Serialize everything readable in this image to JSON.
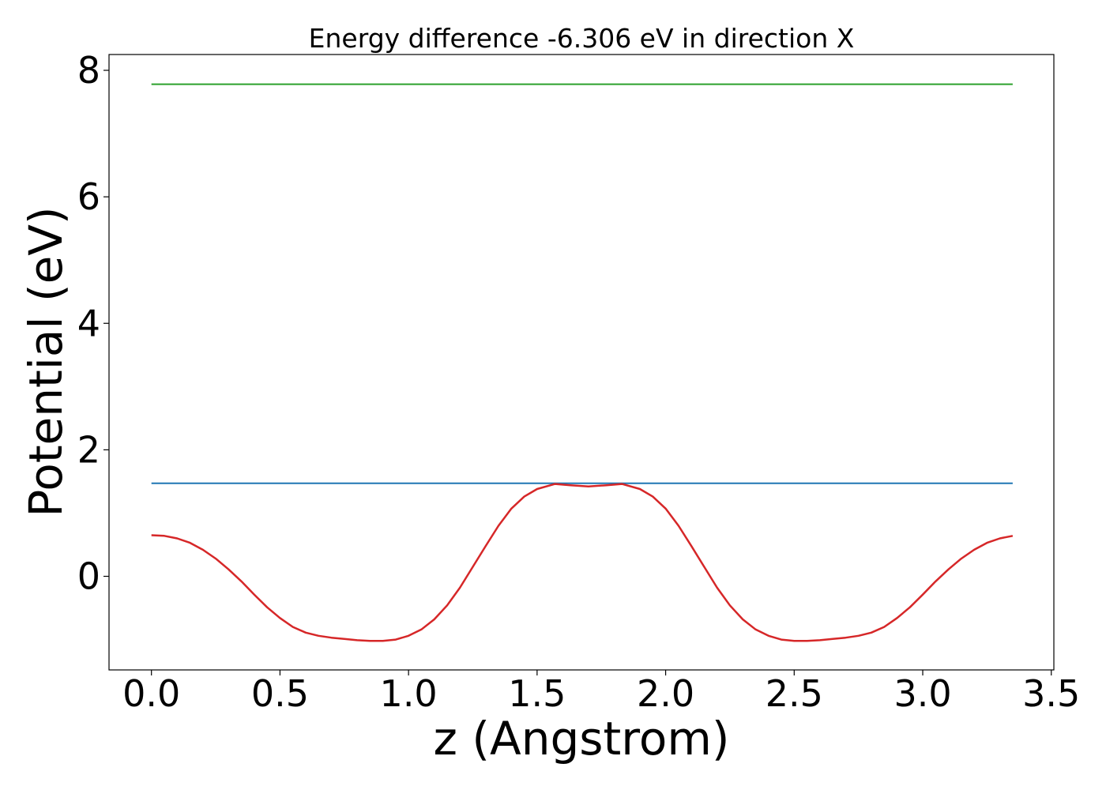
{
  "chart_data": {
    "type": "line",
    "title": "Energy difference -6.306 eV in direction X",
    "xlabel": "z (Angstrom)",
    "ylabel": "Potential (eV)",
    "xlim": [
      -0.165,
      3.51
    ],
    "ylim": [
      -1.48,
      8.25
    ],
    "xticks": [
      0.0,
      0.5,
      1.0,
      1.5,
      2.0,
      2.5,
      3.0,
      3.5
    ],
    "xtick_labels": [
      "0.0",
      "0.5",
      "1.0",
      "1.5",
      "2.0",
      "2.5",
      "3.0",
      "3.5"
    ],
    "yticks": [
      0,
      2,
      4,
      6,
      8
    ],
    "ytick_labels": [
      "0",
      "2",
      "4",
      "6",
      "8"
    ],
    "grid": false,
    "series": [
      {
        "color": "#2ca02c",
        "x": [
          0.0,
          3.35
        ],
        "y": [
          7.78,
          7.78
        ]
      },
      {
        "color": "#1f77b4",
        "x": [
          0.0,
          3.35
        ],
        "y": [
          1.47,
          1.47
        ]
      },
      {
        "color": "#d62728",
        "x": [
          0.0,
          0.05,
          0.1,
          0.15,
          0.2,
          0.25,
          0.3,
          0.35,
          0.4,
          0.45,
          0.5,
          0.55,
          0.6,
          0.65,
          0.7,
          0.75,
          0.8,
          0.85,
          0.9,
          0.95,
          1.0,
          1.05,
          1.1,
          1.15,
          1.2,
          1.25,
          1.3,
          1.35,
          1.4,
          1.45,
          1.5,
          1.57,
          1.63,
          1.7,
          1.77,
          1.83,
          1.9,
          1.95,
          2.0,
          2.05,
          2.1,
          2.15,
          2.2,
          2.25,
          2.3,
          2.35,
          2.4,
          2.45,
          2.5,
          2.55,
          2.6,
          2.65,
          2.7,
          2.75,
          2.8,
          2.85,
          2.9,
          2.95,
          3.0,
          3.05,
          3.1,
          3.15,
          3.2,
          3.25,
          3.3,
          3.35
        ],
        "y": [
          0.65,
          0.64,
          0.6,
          0.53,
          0.42,
          0.28,
          0.11,
          -0.08,
          -0.29,
          -0.49,
          -0.66,
          -0.8,
          -0.89,
          -0.94,
          -0.97,
          -0.99,
          -1.01,
          -1.02,
          -1.02,
          -1.0,
          -0.94,
          -0.84,
          -0.68,
          -0.46,
          -0.18,
          0.15,
          0.48,
          0.8,
          1.07,
          1.26,
          1.38,
          1.46,
          1.44,
          1.42,
          1.44,
          1.46,
          1.38,
          1.26,
          1.07,
          0.8,
          0.48,
          0.15,
          -0.18,
          -0.46,
          -0.68,
          -0.84,
          -0.94,
          -1.0,
          -1.02,
          -1.02,
          -1.01,
          -0.99,
          -0.97,
          -0.94,
          -0.89,
          -0.8,
          -0.66,
          -0.49,
          -0.29,
          -0.08,
          0.11,
          0.28,
          0.42,
          0.53,
          0.6,
          0.64
        ]
      }
    ]
  }
}
